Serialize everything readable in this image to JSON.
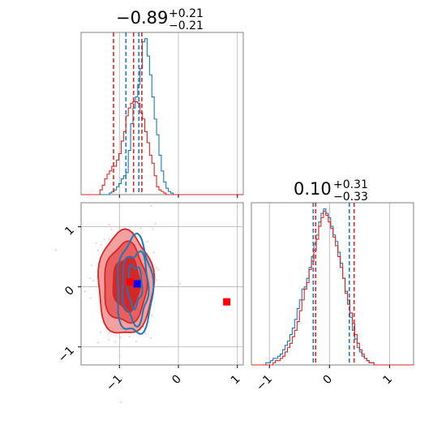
{
  "chart_data": [
    {
      "type": "histogram",
      "panel": "top-left",
      "title_main": "−0.89",
      "title_plus": "+0.21",
      "title_minus": "−0.21",
      "xlim": [
        -1.65,
        1.1
      ],
      "grid": true,
      "x_ticks": [
        -1,
        0,
        1
      ],
      "series": [
        {
          "color": "#1f77b4",
          "median": -0.89,
          "lo": -0.89,
          "hi": -0.67,
          "quantile_lines": [
            -0.89,
            -0.67
          ],
          "bins_start": -1.65,
          "bin_width": 0.04,
          "counts": [
            0,
            0,
            0,
            0,
            0,
            0,
            0,
            0,
            0,
            0,
            0,
            0,
            1,
            2,
            3,
            5,
            7,
            10,
            12,
            14,
            28,
            45,
            55,
            62,
            70,
            80,
            97,
            99,
            88,
            76,
            62,
            48,
            38,
            25,
            15,
            8,
            4,
            2,
            1,
            0,
            0,
            0,
            0,
            0,
            0,
            0,
            0,
            0,
            0,
            0,
            0,
            0,
            0,
            0,
            0,
            0,
            0,
            0,
            0,
            0,
            0,
            0,
            0,
            0,
            0,
            0,
            0,
            0,
            0
          ]
        },
        {
          "color": "#d62728",
          "median": -0.76,
          "lo": -1.1,
          "hi": -0.62,
          "quantile_lines": [
            -1.1,
            -0.76,
            -0.62
          ],
          "bins_start": -1.65,
          "bin_width": 0.04,
          "counts": [
            0,
            0,
            0,
            0,
            0,
            0,
            0,
            0,
            3,
            6,
            10,
            13,
            15,
            18,
            18,
            22,
            26,
            34,
            40,
            50,
            55,
            58,
            59,
            59,
            58,
            52,
            48,
            40,
            33,
            25,
            20,
            12,
            5,
            3,
            2,
            1,
            0,
            0,
            0,
            0,
            0,
            0,
            0,
            0,
            0,
            0,
            0,
            0,
            0,
            0,
            0,
            0,
            0,
            0,
            0,
            0,
            0,
            0,
            0,
            0,
            0,
            0,
            0,
            0,
            0,
            0,
            0,
            0,
            0
          ]
        }
      ]
    },
    {
      "type": "scatter-contour",
      "panel": "bottom-left",
      "xlim": [
        -1.65,
        1.1
      ],
      "ylim": [
        -1.3,
        1.4
      ],
      "grid": true,
      "x_ticks": [
        -1,
        0,
        1
      ],
      "y_ticks": [
        -1,
        0,
        1
      ],
      "blue_center": [
        -0.74,
        0.0
      ],
      "red_center": [
        -0.9,
        0.05
      ],
      "markers": [
        {
          "color": "#0000ff",
          "x": -0.7,
          "y": 0.05
        },
        {
          "color": "#ff0000",
          "x": -0.82,
          "y": 0.08
        },
        {
          "color": "#ff0000",
          "x": 0.82,
          "y": -0.25
        }
      ]
    },
    {
      "type": "histogram",
      "panel": "bottom-right",
      "title_main": "0.10",
      "title_plus": "+0.31",
      "title_minus": "−0.33",
      "xlim": [
        -1.3,
        1.4
      ],
      "grid": true,
      "x_ticks": [
        -1,
        0,
        1
      ],
      "series": [
        {
          "color": "#1f77b4",
          "median": 0.04,
          "lo": -0.27,
          "hi": 0.33,
          "quantile_lines": [
            -0.27,
            0.33
          ],
          "bins_start": -1.3,
          "bin_width": 0.04,
          "counts": [
            0,
            0,
            0,
            0,
            0,
            0,
            1,
            1,
            2,
            3,
            3,
            4,
            5,
            7,
            9,
            11,
            14,
            17,
            21,
            26,
            30,
            35,
            36,
            40,
            45,
            50,
            56,
            60,
            66,
            70,
            72,
            70,
            68,
            64,
            60,
            57,
            52,
            47,
            40,
            33,
            28,
            22,
            16,
            12,
            8,
            6,
            4,
            3,
            2,
            1,
            1,
            0,
            0,
            0,
            0,
            0,
            0,
            0,
            0,
            0,
            0,
            0,
            0,
            0,
            0,
            0,
            0,
            0
          ]
        },
        {
          "color": "#d62728",
          "median": 0.1,
          "lo": -0.23,
          "hi": 0.41,
          "quantile_lines": [
            -0.23,
            0.41
          ],
          "bins_start": -1.3,
          "bin_width": 0.04,
          "counts": [
            0,
            0,
            0,
            0,
            0,
            0,
            0,
            0,
            0,
            1,
            2,
            2,
            3,
            4,
            6,
            8,
            10,
            13,
            16,
            20,
            25,
            30,
            35,
            38,
            44,
            48,
            53,
            58,
            64,
            68,
            71,
            69,
            66,
            63,
            59,
            55,
            50,
            45,
            40,
            34,
            30,
            24,
            19,
            14,
            10,
            7,
            5,
            3,
            2,
            1,
            1,
            0,
            0,
            0,
            0,
            0,
            0,
            0,
            0,
            0,
            0,
            0,
            0,
            0,
            0,
            0,
            0,
            0
          ]
        }
      ]
    }
  ]
}
